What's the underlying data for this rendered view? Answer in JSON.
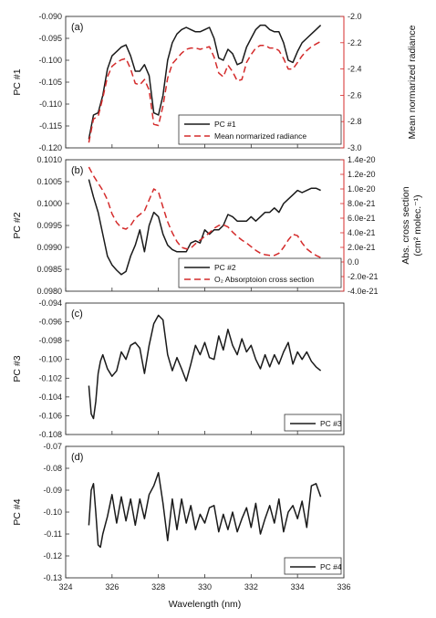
{
  "colors": {
    "black_line": "#1a1a1a",
    "red_line": "#d42b2b",
    "axis": "#333333"
  },
  "x_axis": {
    "label": "Wavelength (nm)",
    "ticks": [
      "324",
      "326",
      "328",
      "330",
      "332",
      "334",
      "336"
    ],
    "range": [
      324,
      336
    ]
  },
  "chart_data": [
    {
      "type": "line",
      "panel_label": "(a)",
      "ylabel": "PC #1",
      "ylim": [
        -0.12,
        -0.09
      ],
      "yticks": [
        "-0.090",
        "-0.095",
        "-0.100",
        "-0.105",
        "-0.110",
        "-0.115",
        "-0.120"
      ],
      "ytick_values": [
        -0.09,
        -0.095,
        -0.1,
        -0.105,
        -0.11,
        -0.115,
        -0.12
      ],
      "right_axis": {
        "label": "Mean normarized radiance",
        "ylim": [
          -3.0,
          -2.0
        ],
        "ticks": [
          "-2.0",
          "-2.2",
          "-2.4",
          "-2.6",
          "-2.8",
          "-3.0"
        ],
        "tick_values": [
          -2.0,
          -2.2,
          -2.4,
          -2.6,
          -2.8,
          -3.0
        ]
      },
      "legend_position": "bottom-right",
      "series": [
        {
          "name": "PC #1",
          "axis": "left",
          "style": "solid",
          "x": [
            325.0,
            325.2,
            325.4,
            325.6,
            325.8,
            326.0,
            326.2,
            326.4,
            326.6,
            326.8,
            327.0,
            327.2,
            327.4,
            327.6,
            327.8,
            328.0,
            328.2,
            328.4,
            328.6,
            328.8,
            329.0,
            329.2,
            329.4,
            329.6,
            329.8,
            330.0,
            330.2,
            330.4,
            330.6,
            330.8,
            331.0,
            331.2,
            331.4,
            331.6,
            331.8,
            332.0,
            332.2,
            332.4,
            332.6,
            332.8,
            333.0,
            333.2,
            333.4,
            333.6,
            333.8,
            334.0,
            334.2,
            334.4,
            334.6,
            334.8,
            335.0
          ],
          "y": [
            -0.118,
            -0.1125,
            -0.112,
            -0.108,
            -0.102,
            -0.099,
            -0.098,
            -0.097,
            -0.0965,
            -0.099,
            -0.1025,
            -0.1025,
            -0.101,
            -0.1035,
            -0.112,
            -0.1125,
            -0.108,
            -0.1,
            -0.096,
            -0.094,
            -0.093,
            -0.0925,
            -0.093,
            -0.0935,
            -0.0935,
            -0.093,
            -0.0925,
            -0.095,
            -0.0995,
            -0.1,
            -0.0975,
            -0.0985,
            -0.101,
            -0.1005,
            -0.097,
            -0.095,
            -0.093,
            -0.092,
            -0.092,
            -0.093,
            -0.0935,
            -0.0935,
            -0.096,
            -0.1,
            -0.1005,
            -0.098,
            -0.096,
            -0.095,
            -0.094,
            -0.093,
            -0.092
          ]
        },
        {
          "name": "Mean normarized radiance",
          "axis": "right",
          "style": "dashed",
          "x": [
            325.0,
            325.2,
            325.4,
            325.6,
            325.8,
            326.0,
            326.2,
            326.4,
            326.6,
            326.8,
            327.0,
            327.2,
            327.4,
            327.6,
            327.8,
            328.0,
            328.2,
            328.4,
            328.6,
            328.8,
            329.0,
            329.2,
            329.4,
            329.6,
            329.8,
            330.0,
            330.2,
            330.4,
            330.6,
            330.8,
            331.0,
            331.2,
            331.4,
            331.6,
            331.8,
            332.0,
            332.2,
            332.4,
            332.6,
            332.8,
            333.0,
            333.2,
            333.4,
            333.6,
            333.8,
            334.0,
            334.2,
            334.4,
            334.6,
            334.8,
            335.0
          ],
          "y": [
            -2.96,
            -2.78,
            -2.76,
            -2.62,
            -2.46,
            -2.38,
            -2.35,
            -2.33,
            -2.32,
            -2.4,
            -2.51,
            -2.52,
            -2.48,
            -2.56,
            -2.82,
            -2.83,
            -2.68,
            -2.47,
            -2.36,
            -2.32,
            -2.28,
            -2.25,
            -2.24,
            -2.24,
            -2.25,
            -2.24,
            -2.23,
            -2.31,
            -2.43,
            -2.46,
            -2.37,
            -2.42,
            -2.49,
            -2.48,
            -2.35,
            -2.29,
            -2.24,
            -2.22,
            -2.22,
            -2.24,
            -2.24,
            -2.26,
            -2.32,
            -2.4,
            -2.4,
            -2.35,
            -2.3,
            -2.26,
            -2.23,
            -2.21,
            -2.19
          ]
        }
      ]
    },
    {
      "type": "line",
      "panel_label": "(b)",
      "ylabel": "PC #2",
      "ylim": [
        0.098,
        0.101
      ],
      "yticks": [
        "0.1010",
        "0.1005",
        "0.1000",
        "0.0995",
        "0.0990",
        "0.0985",
        "0.0980"
      ],
      "ytick_values": [
        0.101,
        0.1005,
        0.1,
        0.0995,
        0.099,
        0.0985,
        0.098
      ],
      "right_axis": {
        "label": "Abs. cross section (cm² molec.⁻¹)",
        "label_line1": "Abs. cross section",
        "label_line2": "(cm² molec.⁻¹)",
        "ylim": [
          -4e-21,
          1.4e-20
        ],
        "ticks": [
          "1.4e-20",
          "1.2e-20",
          "1.0e-20",
          "8.0e-21",
          "6.0e-21",
          "4.0e-21",
          "2.0e-21",
          "0.0",
          "-2.0e-21",
          "-4.0e-21"
        ],
        "tick_values": [
          1.4e-20,
          1.2e-20,
          1e-20,
          8e-21,
          6e-21,
          4e-21,
          2e-21,
          0.0,
          -2e-21,
          -4e-21
        ]
      },
      "legend_position": "bottom-right",
      "series": [
        {
          "name": "PC #2",
          "axis": "left",
          "style": "solid",
          "x": [
            325.0,
            325.2,
            325.4,
            325.6,
            325.8,
            326.0,
            326.2,
            326.4,
            326.6,
            326.8,
            327.0,
            327.2,
            327.4,
            327.6,
            327.8,
            328.0,
            328.2,
            328.4,
            328.6,
            328.8,
            329.0,
            329.2,
            329.4,
            329.6,
            329.8,
            330.0,
            330.2,
            330.4,
            330.6,
            330.8,
            331.0,
            331.2,
            331.4,
            331.6,
            331.8,
            332.0,
            332.2,
            332.4,
            332.6,
            332.8,
            333.0,
            333.2,
            333.4,
            333.6,
            333.8,
            334.0,
            334.2,
            334.4,
            334.6,
            334.8,
            335.0
          ],
          "y": [
            0.10055,
            0.10015,
            0.0998,
            0.0993,
            0.0988,
            0.0986,
            0.09848,
            0.09838,
            0.09845,
            0.0988,
            0.09905,
            0.0994,
            0.0989,
            0.0995,
            0.0998,
            0.0997,
            0.0993,
            0.09905,
            0.09895,
            0.0989,
            0.0989,
            0.0989,
            0.0991,
            0.09915,
            0.0991,
            0.0994,
            0.0993,
            0.0994,
            0.0994,
            0.0995,
            0.09975,
            0.0997,
            0.0996,
            0.0996,
            0.0996,
            0.0997,
            0.0996,
            0.0997,
            0.0998,
            0.0998,
            0.0999,
            0.0998,
            0.1,
            0.1001,
            0.1002,
            0.1003,
            0.10025,
            0.1003,
            0.10035,
            0.10035,
            0.1003
          ]
        },
        {
          "name": "O₂ Absorptoion cross section",
          "axis": "right",
          "style": "dashed",
          "x": [
            325.0,
            325.2,
            325.4,
            325.6,
            325.8,
            326.0,
            326.2,
            326.4,
            326.6,
            326.8,
            327.0,
            327.2,
            327.4,
            327.6,
            327.8,
            328.0,
            328.2,
            328.4,
            328.6,
            328.8,
            329.0,
            329.2,
            329.4,
            329.6,
            329.8,
            330.0,
            330.2,
            330.4,
            330.6,
            330.8,
            331.0,
            331.2,
            331.4,
            331.6,
            331.8,
            332.0,
            332.2,
            332.4,
            332.6,
            332.8,
            333.0,
            333.2,
            333.4,
            333.6,
            333.8,
            334.0,
            334.2,
            334.4,
            334.6,
            334.8,
            335.0
          ],
          "y": [
            1.3e-20,
            1.18e-20,
            1.08e-20,
            9.8e-21,
            8.5e-21,
            6.6e-21,
            5.4e-21,
            4.7e-21,
            4.5e-21,
            5e-21,
            6e-21,
            6.5e-21,
            7e-21,
            8.5e-21,
            1e-20,
            9.6e-21,
            7.5e-21,
            5.5e-21,
            4e-21,
            2.8e-21,
            2e-21,
            1.8e-21,
            1.9e-21,
            2.5e-21,
            3e-21,
            3.5e-21,
            4e-21,
            4.6e-21,
            5e-21,
            5.1e-21,
            4.8e-21,
            4.1e-21,
            3.5e-21,
            3e-21,
            2.6e-21,
            2.1e-21,
            1.6e-21,
            1.2e-21,
            1e-21,
            9e-22,
            9e-22,
            1.2e-21,
            2e-21,
            3e-21,
            3.8e-21,
            3.6e-21,
            2.6e-21,
            1.8e-21,
            1.3e-21,
            9e-22,
            6e-22
          ]
        }
      ]
    },
    {
      "type": "line",
      "panel_label": "(c)",
      "ylabel": "PC #3",
      "ylim": [
        -0.108,
        -0.094
      ],
      "yticks": [
        "-0.094",
        "-0.096",
        "-0.098",
        "-0.100",
        "-0.102",
        "-0.104",
        "-0.106",
        "-0.108"
      ],
      "ytick_values": [
        -0.094,
        -0.096,
        -0.098,
        -0.1,
        -0.102,
        -0.104,
        -0.106,
        -0.108
      ],
      "legend_position": "bottom-right",
      "series": [
        {
          "name": "PC #3",
          "axis": "left",
          "style": "solid",
          "x": [
            325.0,
            325.1,
            325.2,
            325.3,
            325.4,
            325.5,
            325.6,
            325.8,
            326.0,
            326.2,
            326.4,
            326.6,
            326.8,
            327.0,
            327.2,
            327.4,
            327.6,
            327.8,
            328.0,
            328.2,
            328.4,
            328.6,
            328.8,
            329.0,
            329.2,
            329.4,
            329.6,
            329.8,
            330.0,
            330.2,
            330.4,
            330.6,
            330.8,
            331.0,
            331.2,
            331.4,
            331.6,
            331.8,
            332.0,
            332.2,
            332.4,
            332.6,
            332.8,
            333.0,
            333.2,
            333.4,
            333.6,
            333.8,
            334.0,
            334.2,
            334.4,
            334.6,
            334.8,
            335.0
          ],
          "y": [
            -0.1028,
            -0.1058,
            -0.1063,
            -0.1045,
            -0.1015,
            -0.1002,
            -0.0995,
            -0.101,
            -0.1018,
            -0.1012,
            -0.0992,
            -0.1,
            -0.0985,
            -0.0982,
            -0.0988,
            -0.1015,
            -0.0985,
            -0.0962,
            -0.0953,
            -0.0958,
            -0.0995,
            -0.1012,
            -0.0998,
            -0.101,
            -0.1023,
            -0.1005,
            -0.0985,
            -0.0995,
            -0.0982,
            -0.0998,
            -0.1,
            -0.0975,
            -0.099,
            -0.0968,
            -0.0985,
            -0.0995,
            -0.0978,
            -0.0992,
            -0.0985,
            -0.1,
            -0.101,
            -0.0995,
            -0.1008,
            -0.0995,
            -0.1005,
            -0.0992,
            -0.0982,
            -0.1005,
            -0.0992,
            -0.1,
            -0.0992,
            -0.1002,
            -0.1008,
            -0.1012
          ]
        }
      ]
    },
    {
      "type": "line",
      "panel_label": "(d)",
      "ylabel": "PC #4",
      "ylim": [
        -0.13,
        -0.07
      ],
      "yticks": [
        "-0.07",
        "-0.08",
        "-0.09",
        "-0.10",
        "-0.11",
        "-0.12",
        "-0.13"
      ],
      "ytick_values": [
        -0.07,
        -0.08,
        -0.09,
        -0.1,
        -0.11,
        -0.12,
        -0.13
      ],
      "legend_position": "bottom-right",
      "series": [
        {
          "name": "PC #4",
          "axis": "left",
          "style": "solid",
          "x": [
            325.0,
            325.1,
            325.2,
            325.3,
            325.4,
            325.5,
            325.6,
            325.8,
            326.0,
            326.2,
            326.4,
            326.6,
            326.8,
            327.0,
            327.2,
            327.4,
            327.6,
            327.8,
            328.0,
            328.2,
            328.4,
            328.6,
            328.8,
            329.0,
            329.2,
            329.4,
            329.6,
            329.8,
            330.0,
            330.2,
            330.4,
            330.6,
            330.8,
            331.0,
            331.2,
            331.4,
            331.6,
            331.8,
            332.0,
            332.2,
            332.4,
            332.6,
            332.8,
            333.0,
            333.2,
            333.4,
            333.6,
            333.8,
            334.0,
            334.2,
            334.4,
            334.6,
            334.8,
            335.0
          ],
          "y": [
            -0.106,
            -0.09,
            -0.087,
            -0.1,
            -0.115,
            -0.116,
            -0.11,
            -0.102,
            -0.092,
            -0.105,
            -0.093,
            -0.104,
            -0.094,
            -0.106,
            -0.094,
            -0.103,
            -0.092,
            -0.088,
            -0.082,
            -0.096,
            -0.113,
            -0.094,
            -0.108,
            -0.094,
            -0.105,
            -0.097,
            -0.108,
            -0.101,
            -0.105,
            -0.098,
            -0.097,
            -0.109,
            -0.101,
            -0.108,
            -0.1,
            -0.109,
            -0.103,
            -0.098,
            -0.107,
            -0.096,
            -0.11,
            -0.103,
            -0.097,
            -0.105,
            -0.094,
            -0.109,
            -0.1,
            -0.097,
            -0.103,
            -0.095,
            -0.107,
            -0.088,
            -0.087,
            -0.093
          ]
        }
      ]
    }
  ]
}
